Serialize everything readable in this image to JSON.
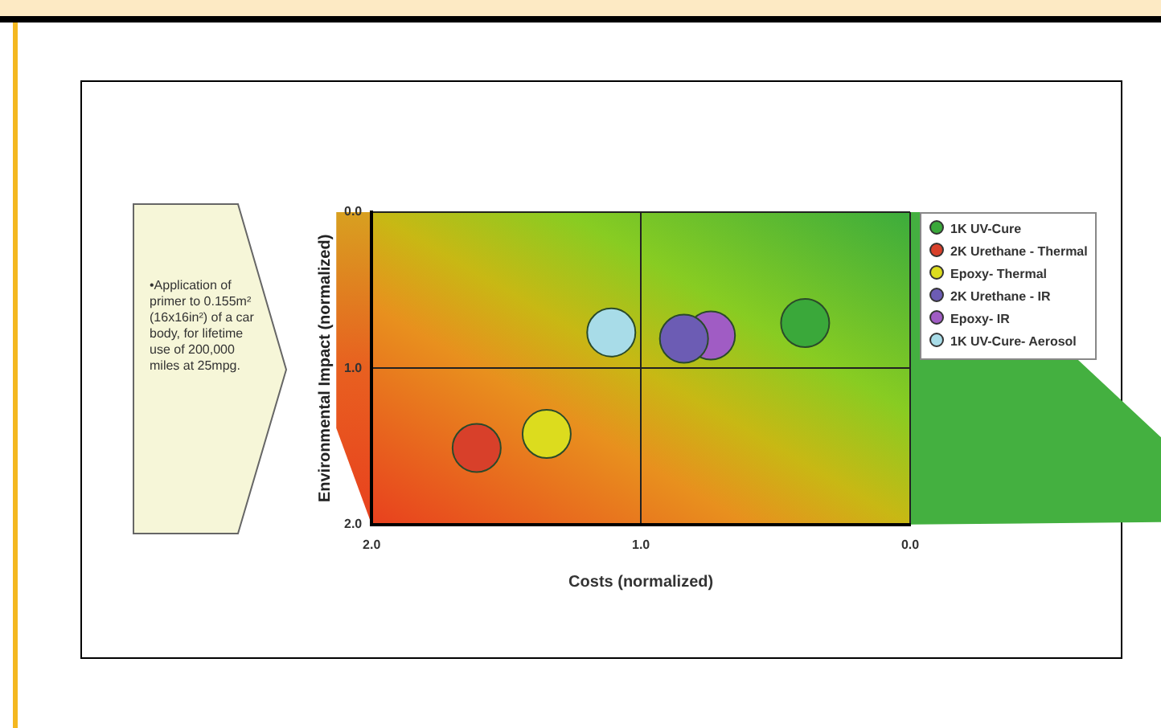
{
  "chart_data": {
    "type": "bubble",
    "xlabel": "Costs (normalized)",
    "ylabel": "Environmental Impact (normalized)",
    "annotations": [
      "•Application of primer to 0.155m² (16x16in²) of a car body, for lifetime use of 200,000 miles at 25mpg."
    ],
    "series": [
      {
        "name": "1K UV-Cure",
        "color": "#3aa83a",
        "x": [
          0.39
        ],
        "values": [
          0.71
        ],
        "sizes": [
          1
        ]
      },
      {
        "name": "2K Urethane - Thermal",
        "color": "#d8402a",
        "x": [
          1.61
        ],
        "values": [
          1.51
        ],
        "sizes": [
          1
        ]
      },
      {
        "name": "Epoxy- Thermal",
        "color": "#dcdc1e",
        "x": [
          1.35
        ],
        "values": [
          1.42
        ],
        "sizes": [
          1
        ]
      },
      {
        "name": "2K Urethane - IR",
        "color": "#6c5cb4",
        "x": [
          0.84
        ],
        "values": [
          0.81
        ],
        "sizes": [
          1
        ]
      },
      {
        "name": "Epoxy- IR",
        "color": "#a05cc4",
        "x": [
          0.74
        ],
        "values": [
          0.79
        ],
        "sizes": [
          1
        ]
      },
      {
        "name": "1K UV-Cure- Aerosol",
        "color": "#a8dce8",
        "x": [
          1.11
        ],
        "values": [
          0.77
        ],
        "sizes": [
          1
        ]
      }
    ],
    "xlim": [
      2,
      0
    ],
    "xticks": [
      {
        "value": 2,
        "label": "2.0"
      },
      {
        "value": 1,
        "label": "1.0"
      },
      {
        "value": 0,
        "label": "0.0"
      }
    ],
    "ylim": [
      2,
      0
    ],
    "yticks": [
      {
        "value": 2,
        "label": "2.0"
      },
      {
        "value": 1,
        "label": "1.0"
      },
      {
        "value": 0,
        "label": "0.0"
      }
    ],
    "grid": true,
    "legend": "right"
  }
}
